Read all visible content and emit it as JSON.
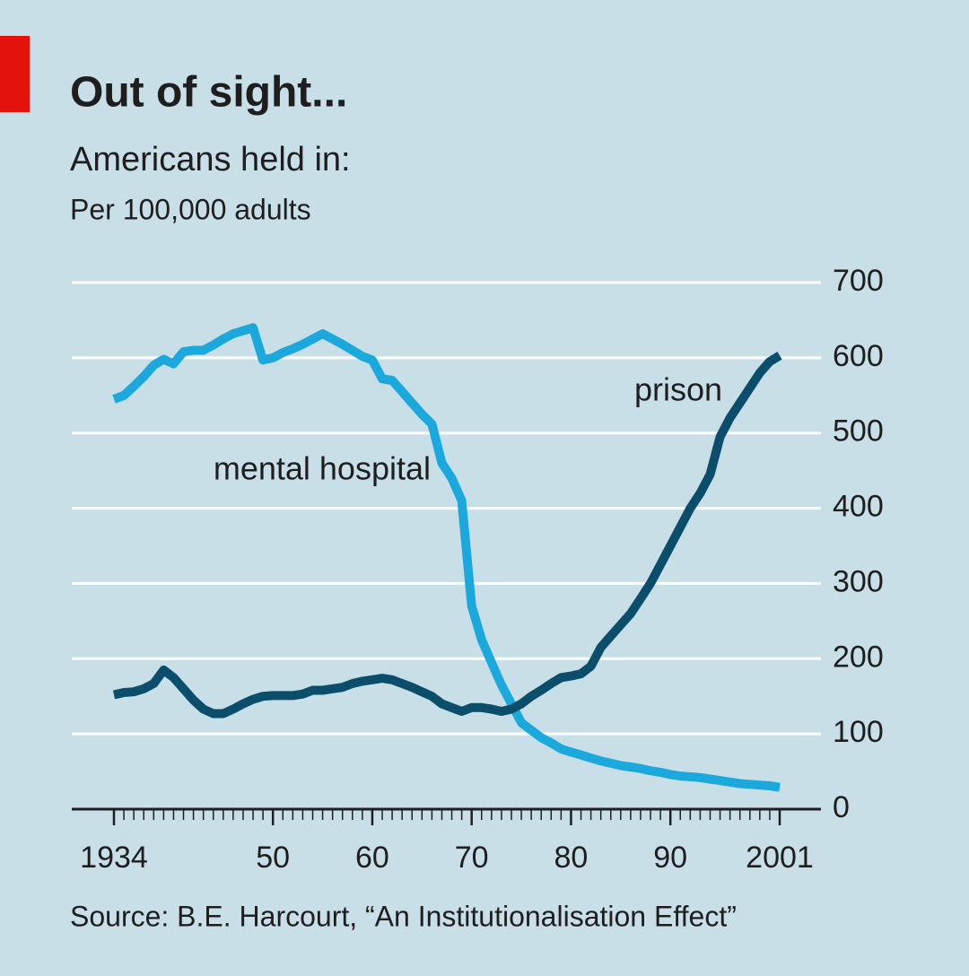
{
  "chart_data": {
    "type": "line",
    "title": "Out of sight...",
    "subtitle": "Americans held in:",
    "unit_label": "Per 100,000 adults",
    "source": "Source: B.E. Harcourt, “An Institutionalisation Effect”",
    "x": [
      1934,
      1935,
      1936,
      1937,
      1938,
      1939,
      1940,
      1941,
      1942,
      1943,
      1944,
      1945,
      1946,
      1947,
      1948,
      1949,
      1950,
      1951,
      1952,
      1953,
      1954,
      1955,
      1956,
      1957,
      1958,
      1959,
      1960,
      1961,
      1962,
      1963,
      1964,
      1965,
      1966,
      1967,
      1968,
      1969,
      1970,
      1971,
      1972,
      1973,
      1974,
      1975,
      1976,
      1977,
      1978,
      1979,
      1980,
      1981,
      1982,
      1983,
      1984,
      1985,
      1986,
      1987,
      1988,
      1989,
      1990,
      1991,
      1992,
      1993,
      1994,
      1995,
      1996,
      1997,
      1998,
      1999,
      2000,
      2001
    ],
    "series": [
      {
        "name": "mental hospital",
        "color": "#1ba8dd",
        "values": [
          545,
          550,
          562,
          575,
          590,
          598,
          592,
          608,
          610,
          610,
          617,
          625,
          632,
          636,
          640,
          597,
          600,
          607,
          612,
          618,
          625,
          632,
          625,
          618,
          610,
          602,
          597,
          572,
          570,
          555,
          540,
          525,
          512,
          460,
          440,
          410,
          270,
          225,
          195,
          165,
          140,
          115,
          105,
          95,
          88,
          80,
          76,
          72,
          68,
          64,
          61,
          58,
          56,
          54,
          51,
          49,
          46,
          44,
          43,
          42,
          40,
          38,
          36,
          34,
          33,
          32,
          31,
          29
        ]
      },
      {
        "name": "prison",
        "color": "#0b4e6b",
        "values": [
          152,
          155,
          156,
          160,
          167,
          185,
          175,
          160,
          145,
          133,
          127,
          127,
          133,
          140,
          146,
          150,
          151,
          151,
          151,
          153,
          158,
          158,
          160,
          162,
          167,
          170,
          172,
          174,
          172,
          167,
          162,
          156,
          150,
          140,
          135,
          130,
          135,
          135,
          133,
          130,
          133,
          140,
          150,
          158,
          167,
          175,
          177,
          180,
          190,
          215,
          230,
          245,
          260,
          280,
          300,
          325,
          350,
          375,
          400,
          420,
          445,
          495,
          520,
          540,
          560,
          580,
          595,
          603
        ]
      }
    ],
    "xlim": [
      1934,
      2001
    ],
    "xticks": [
      1934,
      {
        "value": 1950,
        "label": "50"
      },
      {
        "value": 1960,
        "label": "60"
      },
      {
        "value": 1970,
        "label": "70"
      },
      {
        "value": 1980,
        "label": "80"
      },
      {
        "value": 1990,
        "label": "90"
      },
      2001
    ],
    "ylim": [
      0,
      700
    ],
    "yticks": [
      0,
      100,
      200,
      300,
      400,
      500,
      600,
      700
    ],
    "grid": true,
    "y_axis_side": "right"
  }
}
